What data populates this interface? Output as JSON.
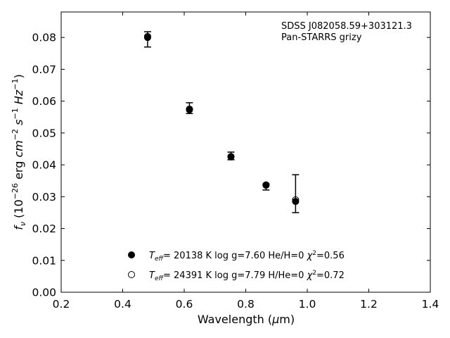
{
  "chart_data": {
    "type": "scatter",
    "xlabel": "Wavelength (μm)",
    "xlabel_parts": [
      "Wavelength (",
      "μ",
      "m)"
    ],
    "ylabel": "f_ν (10^-26 erg cm^-2 s^-1 Hz^-1)",
    "xlim": [
      0.2,
      1.4
    ],
    "ylim": [
      0.0,
      0.088
    ],
    "xticks": [
      0.2,
      0.4,
      0.6,
      0.8,
      1.0,
      1.2,
      1.4
    ],
    "xtick_labels": [
      "0.2",
      "0.4",
      "0.6",
      "0.8",
      "1.0",
      "1.2",
      "1.4"
    ],
    "yticks": [
      0.0,
      0.01,
      0.02,
      0.03,
      0.04,
      0.05,
      0.06,
      0.07,
      0.08
    ],
    "ytick_labels": [
      "0.00",
      "0.01",
      "0.02",
      "0.03",
      "0.04",
      "0.05",
      "0.06",
      "0.07",
      "0.08"
    ],
    "grid": false,
    "annotation": {
      "line1": "SDSS J082058.59+303121.3",
      "line2": "Pan-STARRS grizy"
    },
    "observed": [
      {
        "x": 0.481,
        "y": 0.0795,
        "yerr_low": 0.0025,
        "yerr_high": 0.0023
      },
      {
        "x": 0.617,
        "y": 0.0578,
        "yerr_low": 0.0017,
        "yerr_high": 0.0017
      },
      {
        "x": 0.752,
        "y": 0.0428,
        "yerr_low": 0.0012,
        "yerr_high": 0.0012
      },
      {
        "x": 0.866,
        "y": 0.0336,
        "yerr_low": 0.0015,
        "yerr_high": 0.0004
      },
      {
        "x": 0.962,
        "y": 0.031,
        "yerr_low": 0.006,
        "yerr_high": 0.0059
      }
    ],
    "series": [
      {
        "marker": "filled",
        "legend_label": {
          "teff": "= 20138 K  log g=7.60  He/H=0  ",
          "chi": "=0.56"
        },
        "points": [
          {
            "x": 0.481,
            "y": 0.08
          },
          {
            "x": 0.617,
            "y": 0.0573
          },
          {
            "x": 0.752,
            "y": 0.0425
          },
          {
            "x": 0.866,
            "y": 0.0337
          },
          {
            "x": 0.962,
            "y": 0.0285
          }
        ]
      },
      {
        "marker": "open",
        "legend_label": {
          "teff": "= 24391 K  log g=7.79  H/He=0  ",
          "chi": "=0.72"
        },
        "points": [
          {
            "x": 0.481,
            "y": 0.0803
          },
          {
            "x": 0.617,
            "y": 0.0575
          },
          {
            "x": 0.752,
            "y": 0.0426
          },
          {
            "x": 0.866,
            "y": 0.0336
          },
          {
            "x": 0.962,
            "y": 0.029
          }
        ]
      }
    ],
    "legend_position": "lower-center"
  }
}
